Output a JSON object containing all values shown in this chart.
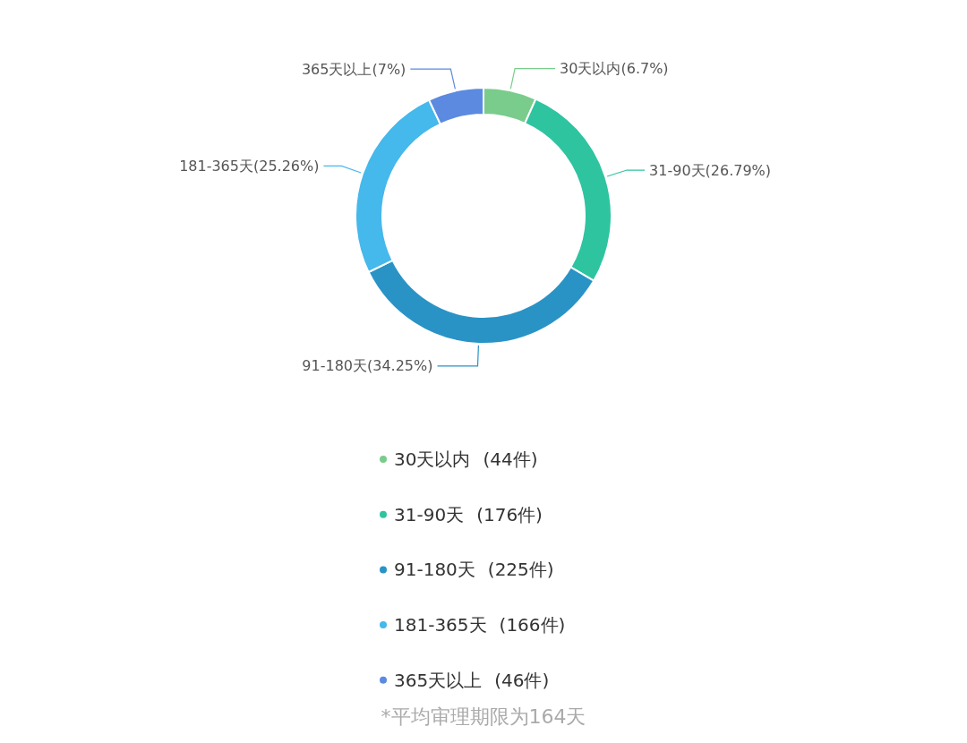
{
  "chart_data": {
    "type": "donut",
    "categories": [
      "30天以内",
      "31-90天",
      "91-180天",
      "181-365天",
      "365天以上"
    ],
    "values": [
      6.7,
      26.79,
      34.25,
      25.26,
      7
    ],
    "value_labels": [
      "(6.7%)",
      "(26.79%)",
      "(34.25%)",
      "(25.26%)",
      "(7%)"
    ],
    "colors": [
      "#7acc8c",
      "#2ec4a0",
      "#2a93c6",
      "#45b8ec",
      "#5b8ae0"
    ],
    "legend": "bottom",
    "annotations": [
      {
        "text": "(44件)",
        "x": "30天以内"
      },
      {
        "text": "(176件)",
        "x": "31-90天"
      },
      {
        "text": "(225件)",
        "x": "91-180天"
      },
      {
        "text": "(166件)",
        "x": "181-365天"
      },
      {
        "text": "(46件)",
        "x": "365天以上"
      },
      "*平均审理期限为164天"
    ]
  }
}
